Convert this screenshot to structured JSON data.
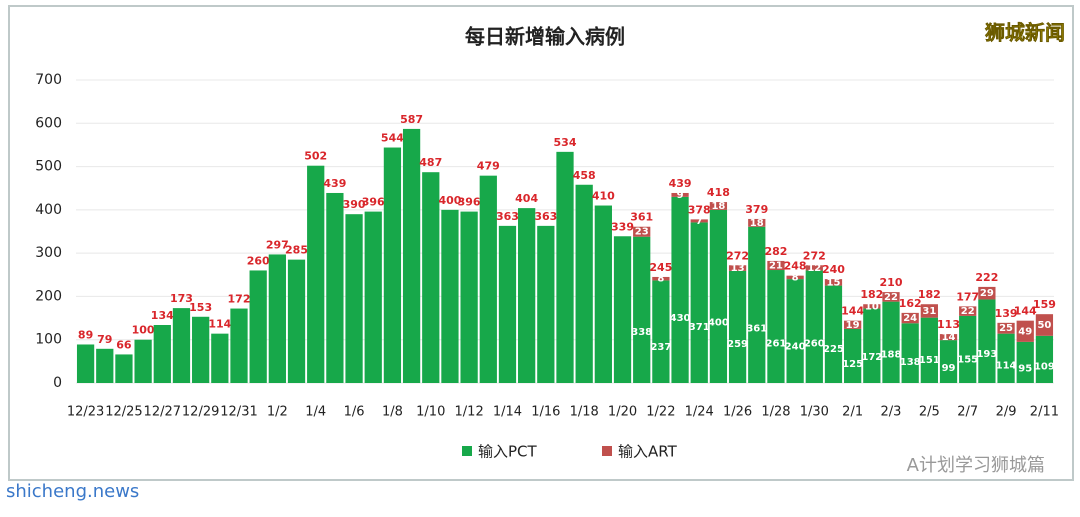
{
  "chart_data": {
    "type": "stacked-bar",
    "title": "每日新增输入病例",
    "categories": [
      "12/23",
      null,
      "12/25",
      null,
      "12/27",
      null,
      "12/29",
      null,
      "12/31",
      null,
      "1/2",
      null,
      "1/4",
      null,
      "1/6",
      null,
      "1/8",
      null,
      "1/10",
      null,
      "1/12",
      null,
      "1/14",
      null,
      "1/16",
      null,
      "1/18",
      null,
      "1/20",
      null,
      "1/22",
      null,
      "1/24",
      null,
      "1/26",
      null,
      "1/28",
      null,
      "1/30",
      null,
      "2/1",
      null,
      "2/3",
      null,
      "2/5",
      null,
      "2/7",
      null,
      "2/9",
      null,
      "2/11"
    ],
    "series": [
      {
        "name": "输入PCT",
        "color": "#17a84a",
        "values": [
          89,
          79,
          66,
          100,
          134,
          173,
          153,
          114,
          172,
          260,
          297,
          285,
          502,
          439,
          390,
          396,
          544,
          587,
          487,
          400,
          396,
          479,
          363,
          404,
          363,
          534,
          458,
          410,
          339,
          338,
          237,
          430,
          371,
          400,
          259,
          361,
          261,
          240,
          260,
          225,
          125,
          172,
          188,
          138,
          151,
          99,
          155,
          193,
          114,
          95,
          109
        ]
      },
      {
        "name": "输入ART",
        "color": "#c0504d",
        "values": [
          null,
          null,
          null,
          null,
          null,
          null,
          null,
          null,
          null,
          null,
          null,
          null,
          null,
          null,
          null,
          null,
          null,
          null,
          null,
          null,
          null,
          null,
          null,
          null,
          null,
          null,
          null,
          null,
          null,
          23,
          8,
          9,
          7,
          18,
          13,
          18,
          21,
          8,
          12,
          15,
          19,
          10,
          22,
          24,
          31,
          14,
          22,
          29,
          25,
          49,
          50
        ]
      }
    ],
    "totals": [
      89,
      79,
      66,
      100,
      134,
      173,
      153,
      114,
      172,
      260,
      297,
      285,
      502,
      439,
      390,
      396,
      544,
      587,
      487,
      400,
      396,
      479,
      363,
      404,
      363,
      534,
      458,
      410,
      339,
      361,
      245,
      439,
      378,
      418,
      272,
      379,
      282,
      248,
      272,
      240,
      144,
      182,
      210,
      162,
      182,
      113,
      177,
      222,
      139,
      144,
      159
    ],
    "ylim": [
      0,
      700
    ],
    "yticks": [
      0,
      100,
      200,
      300,
      400,
      500,
      600,
      700
    ],
    "grid": true,
    "watermark": "狮城新闻",
    "source": "A计划学习狮城篇",
    "site": "shicheng.news"
  }
}
